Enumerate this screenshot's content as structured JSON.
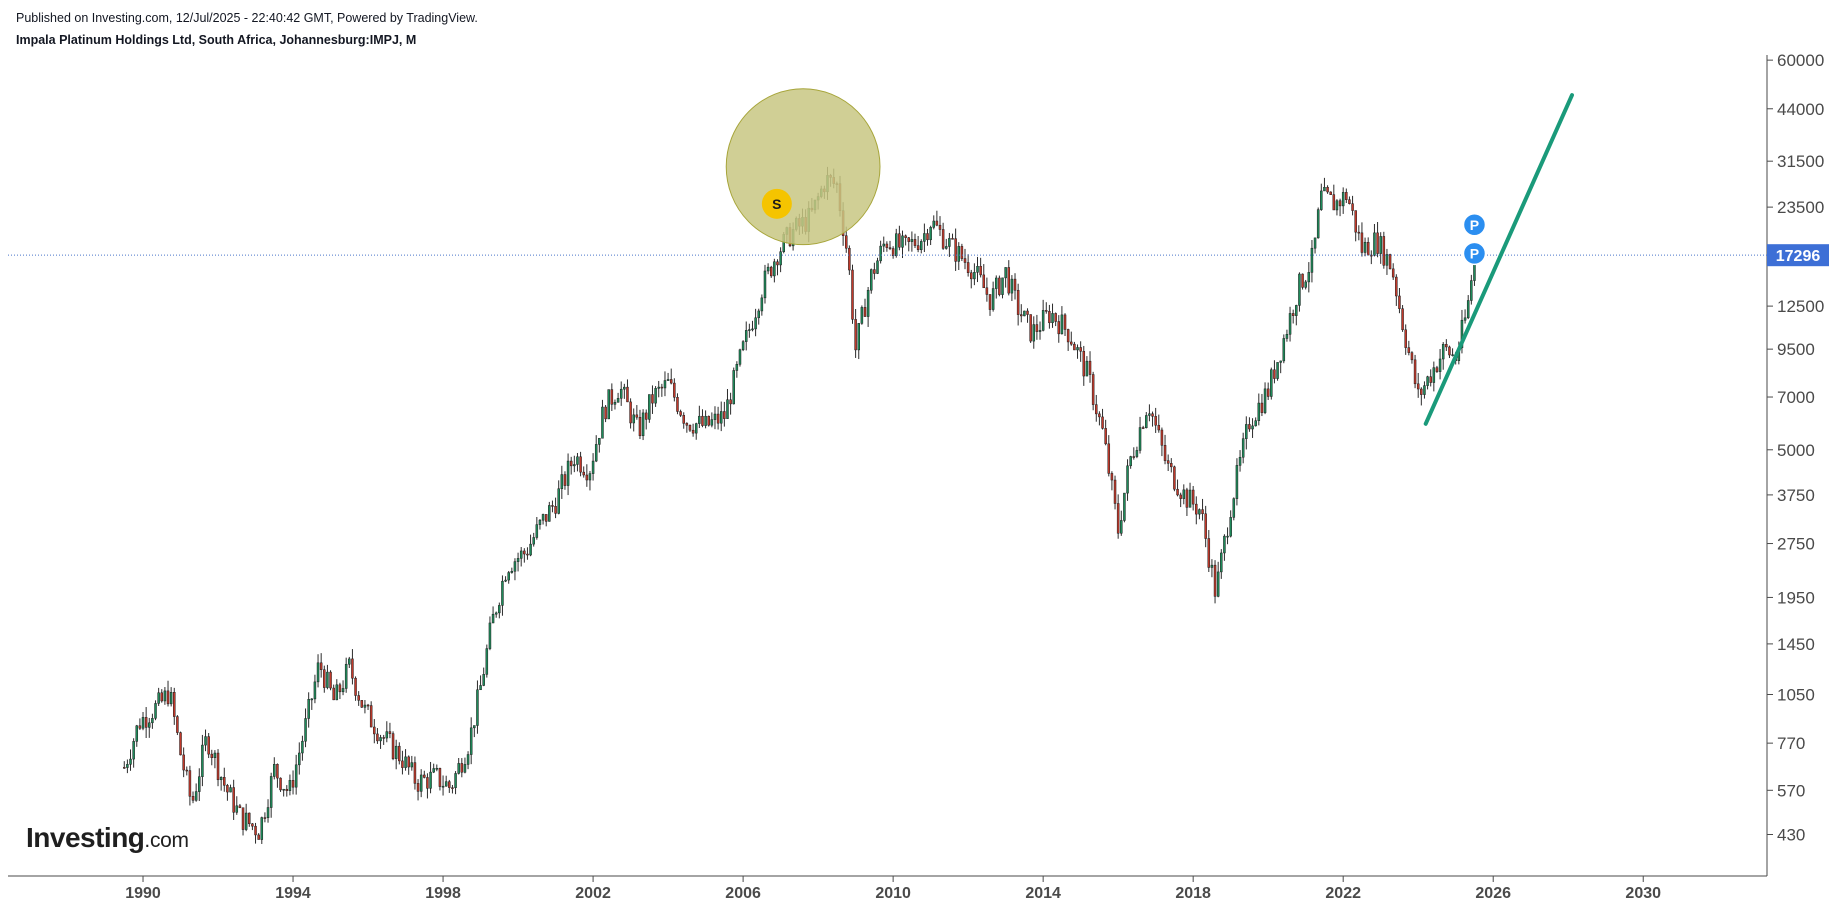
{
  "header": {
    "published": "Published on Investing.com, 12/Jul/2025 - 22:40:42 GMT, Powered by TradingView.",
    "title": "Impala Platinum Holdings Ltd, South Africa, Johannesburg:IMPJ, M"
  },
  "logo": {
    "brand": "Investing",
    "domain": ".com"
  },
  "colors": {
    "up": "#1f8a5a",
    "down": "#c0392b",
    "wick": "#2b2b2b",
    "trendline": "#1a9a7a",
    "price_line": "#4a76c9",
    "price_label_bg": "#3d6fd6",
    "ellipse_fill": "#c8c783",
    "ellipse_stroke": "#a7a53a",
    "sell_marker": "#f5c400",
    "p_marker": "#2b8ef0"
  },
  "chart_data": {
    "type": "candlestick",
    "interval": "monthly",
    "y_scale": "log",
    "ylim": [
      330,
      62000
    ],
    "xlim": [
      1986.4,
      2033.3
    ],
    "x_ticks": [
      "1990",
      "1994",
      "1998",
      "2002",
      "2006",
      "2010",
      "2014",
      "2018",
      "2022",
      "2026",
      "2030"
    ],
    "y_ticks": [
      "60000",
      "44000",
      "31500",
      "23500",
      "12500",
      "9500",
      "7000",
      "5000",
      "3750",
      "2750",
      "1950",
      "1450",
      "1050",
      "770",
      "570",
      "430"
    ],
    "last_price": "17296",
    "price_path": [
      [
        1989.5,
        660
      ],
      [
        1989.9,
        880
      ],
      [
        1990.5,
        1000
      ],
      [
        1990.7,
        1070
      ],
      [
        1991.0,
        720
      ],
      [
        1991.3,
        520
      ],
      [
        1991.7,
        800
      ],
      [
        1992.2,
        580
      ],
      [
        1992.6,
        480
      ],
      [
        1993.1,
        440
      ],
      [
        1993.5,
        650
      ],
      [
        1993.9,
        560
      ],
      [
        1994.3,
        830
      ],
      [
        1994.7,
        1280
      ],
      [
        1995.1,
        1000
      ],
      [
        1995.5,
        1250
      ],
      [
        1995.9,
        950
      ],
      [
        1996.4,
        800
      ],
      [
        1996.9,
        700
      ],
      [
        1997.3,
        600
      ],
      [
        1997.8,
        620
      ],
      [
        1998.2,
        580
      ],
      [
        1998.7,
        780
      ],
      [
        1999.0,
        1100
      ],
      [
        1999.3,
        1650
      ],
      [
        1999.7,
        2400
      ],
      [
        2000.2,
        2600
      ],
      [
        2000.6,
        3100
      ],
      [
        2001.0,
        3600
      ],
      [
        2001.5,
        4800
      ],
      [
        2001.9,
        4400
      ],
      [
        2002.3,
        6500
      ],
      [
        2002.7,
        7500
      ],
      [
        2003.2,
        5600
      ],
      [
        2003.6,
        7000
      ],
      [
        2004.0,
        7600
      ],
      [
        2004.5,
        6000
      ],
      [
        2005.0,
        5800
      ],
      [
        2005.5,
        6200
      ],
      [
        2006.0,
        9500
      ],
      [
        2006.5,
        14000
      ],
      [
        2006.9,
        17500
      ],
      [
        2007.3,
        20000
      ],
      [
        2007.8,
        22000
      ],
      [
        2008.2,
        28000
      ],
      [
        2008.5,
        27000
      ],
      [
        2008.8,
        17000
      ],
      [
        2009.0,
        9500
      ],
      [
        2009.4,
        15000
      ],
      [
        2009.8,
        19000
      ],
      [
        2010.3,
        18000
      ],
      [
        2010.8,
        19500
      ],
      [
        2011.0,
        21500
      ],
      [
        2011.6,
        18000
      ],
      [
        2012.1,
        16000
      ],
      [
        2012.6,
        13000
      ],
      [
        2013.0,
        15500
      ],
      [
        2013.3,
        12500
      ],
      [
        2013.7,
        10500
      ],
      [
        2014.2,
        12000
      ],
      [
        2014.7,
        10500
      ],
      [
        2015.2,
        8000
      ],
      [
        2015.6,
        5500
      ],
      [
        2016.0,
        3000
      ],
      [
        2016.3,
        4600
      ],
      [
        2016.8,
        6800
      ],
      [
        2017.3,
        4500
      ],
      [
        2017.8,
        3700
      ],
      [
        2018.2,
        3400
      ],
      [
        2018.6,
        2000
      ],
      [
        2019.0,
        3500
      ],
      [
        2019.5,
        6000
      ],
      [
        2020.0,
        7300
      ],
      [
        2020.4,
        10000
      ],
      [
        2020.8,
        14000
      ],
      [
        2021.2,
        17000
      ],
      [
        2021.4,
        25000
      ],
      [
        2021.8,
        24000
      ],
      [
        2022.1,
        25500
      ],
      [
        2022.5,
        18000
      ],
      [
        2022.9,
        19000
      ],
      [
        2023.3,
        16000
      ],
      [
        2023.6,
        11000
      ],
      [
        2024.0,
        7000
      ],
      [
        2024.3,
        8000
      ],
      [
        2024.7,
        9500
      ],
      [
        2025.0,
        9000
      ],
      [
        2025.3,
        12000
      ],
      [
        2025.5,
        17296
      ]
    ],
    "annotations": {
      "ellipse": {
        "x_center": 2007.6,
        "y_center": 30500,
        "x_radius_years": 2.05,
        "y_top": 50000,
        "y_bottom": 18500
      },
      "trendline": {
        "from": [
          2024.2,
          5900
        ],
        "to": [
          2028.1,
          48000
        ]
      },
      "sell_marker": {
        "label": "S",
        "x": 2006.9,
        "y": 24000
      },
      "p_markers": [
        {
          "label": "P",
          "x": 2025.5,
          "y": 21000
        },
        {
          "label": "P",
          "x": 2025.5,
          "y": 17500
        }
      ]
    }
  }
}
